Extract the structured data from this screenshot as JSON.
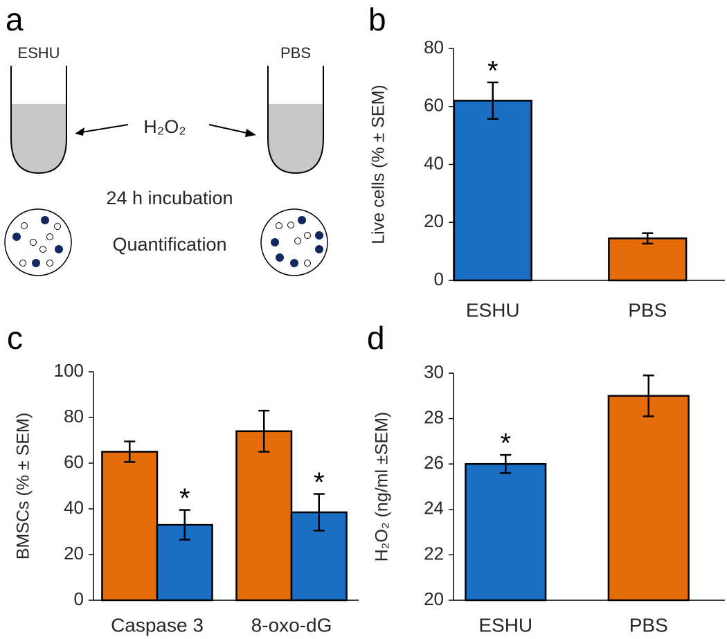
{
  "diagram": {
    "label": "a",
    "left_tube": "ESHU",
    "right_tube": "PBS",
    "reagent": "H₂O₂",
    "step1": "24 h incubation",
    "step2": "Quantification"
  },
  "chart_data": [
    {
      "type": "bar",
      "label": "b",
      "ylabel": "Live cells (% ± SEM)",
      "categories": [
        "ESHU",
        "PBS"
      ],
      "values": [
        62,
        14.5
      ],
      "errors": [
        6.3,
        1.8
      ],
      "colors": [
        "#1a6fc4",
        "#e46c0a"
      ],
      "significance": [
        "*",
        null
      ],
      "ylim": [
        0,
        80
      ],
      "yticks": [
        0,
        20,
        40,
        60,
        80
      ]
    },
    {
      "type": "grouped-bar",
      "label": "c",
      "ylabel": "BMSCs (% ± SEM)",
      "categories": [
        "Caspase 3",
        "8-oxo-dG"
      ],
      "series": [
        {
          "color": "#e46c0a",
          "values": [
            65,
            74
          ],
          "errors": [
            4.5,
            9
          ],
          "significance": [
            null,
            null
          ]
        },
        {
          "color": "#1a6fc4",
          "values": [
            33,
            38.5
          ],
          "errors": [
            6.5,
            8
          ],
          "significance": [
            "*",
            "*"
          ]
        }
      ],
      "ylim": [
        0,
        100
      ],
      "yticks": [
        0,
        20,
        40,
        60,
        80,
        100
      ]
    },
    {
      "type": "bar",
      "label": "d",
      "ylabel": "H₂O₂ (ng/ml ±SEM)",
      "categories": [
        "ESHU",
        "PBS"
      ],
      "values": [
        26,
        29
      ],
      "errors": [
        0.4,
        0.9
      ],
      "colors": [
        "#1a6fc4",
        "#e46c0a"
      ],
      "significance": [
        "*",
        null
      ],
      "ylim": [
        20,
        30
      ],
      "yticks": [
        20,
        22,
        24,
        26,
        28,
        30
      ]
    }
  ]
}
